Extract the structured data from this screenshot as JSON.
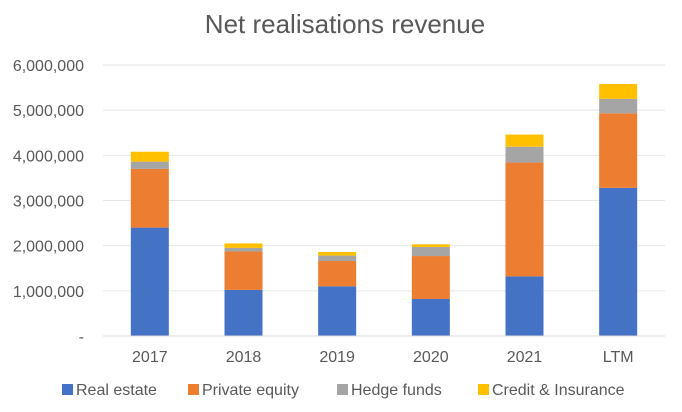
{
  "chart_data": {
    "type": "bar",
    "stacked": true,
    "title": "Net realisations revenue",
    "xlabel": "",
    "ylabel": "",
    "categories": [
      "2017",
      "2018",
      "2019",
      "2020",
      "2021",
      "LTM"
    ],
    "ylim": [
      0,
      6000000
    ],
    "yticks": [
      0,
      1000000,
      2000000,
      3000000,
      4000000,
      5000000,
      6000000
    ],
    "ytick_labels": [
      "-",
      "1,000,000",
      "2,000,000",
      "3,000,000",
      "4,000,000",
      "5,000,000",
      "6,000,000"
    ],
    "grid": true,
    "legend_position": "bottom",
    "series": [
      {
        "name": "Real estate",
        "color": "#4472c4",
        "values": [
          2400000,
          1020000,
          1100000,
          820000,
          1320000,
          3280000
        ]
      },
      {
        "name": "Private equity",
        "color": "#ed7d31",
        "values": [
          1300000,
          850000,
          560000,
          950000,
          2520000,
          1650000
        ]
      },
      {
        "name": "Hedge funds",
        "color": "#a5a5a5",
        "values": [
          160000,
          80000,
          120000,
          200000,
          350000,
          320000
        ]
      },
      {
        "name": "Credit & Insurance",
        "color": "#ffc000",
        "values": [
          220000,
          100000,
          80000,
          60000,
          270000,
          330000
        ]
      }
    ]
  }
}
